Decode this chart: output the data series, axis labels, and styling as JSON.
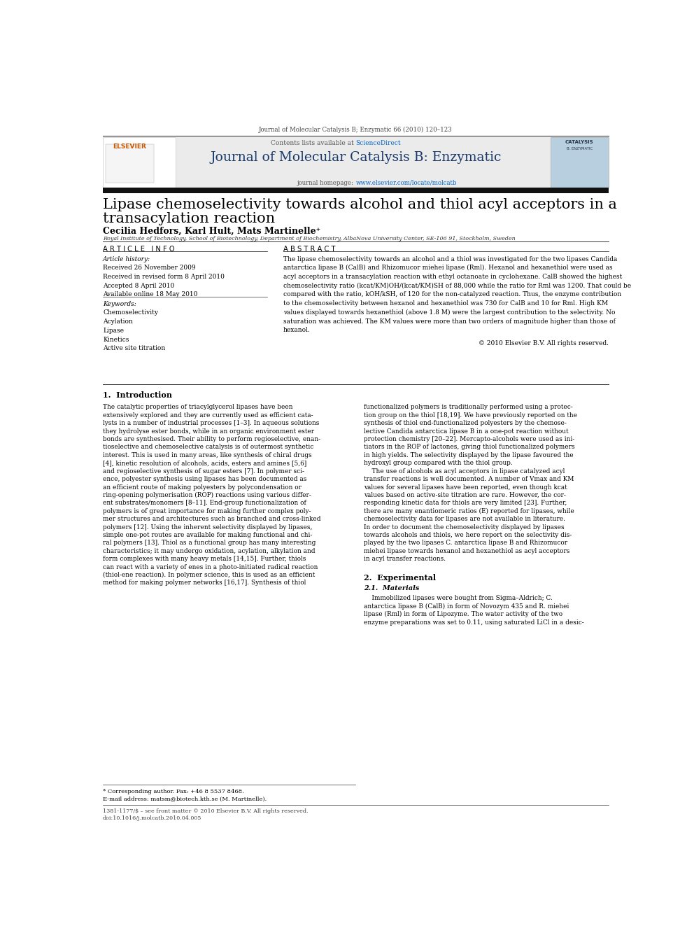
{
  "page_width": 9.92,
  "page_height": 13.23,
  "background_color": "#ffffff",
  "top_journal_line": "Journal of Molecular Catalysis B; Enzymatic 66 (2010) 120–123",
  "header_bg": "#e8e8e8",
  "header_contents": "Contents lists available at ScienceDirect",
  "sciencedirect_color": "#0066cc",
  "journal_title": "Journal of Molecular Catalysis B: Enzymatic",
  "homepage_color": "#0066cc",
  "dark_bar_color": "#1a1a1a",
  "paper_title_line1": "Lipase chemoselectivity towards alcohol and thiol acyl acceptors in a",
  "paper_title_line2": "transacylation reaction",
  "authors": "Cecilia Hedfors, Karl Hult, Mats Martinelle",
  "affiliation": "Royal Institute of Technology, School of Biotechnology, Department of Biochemistry, AlbaNova University Center, SE-106 91, Stockholm, Sweden",
  "article_info_header": "A R T I C L E   I N F O",
  "abstract_header": "A B S T R A C T",
  "article_history_label": "Article history:",
  "received1": "Received 26 November 2009",
  "received2": "Received in revised form 8 April 2010",
  "accepted": "Accepted 8 April 2010",
  "available": "Available online 18 May 2010",
  "keywords_label": "Keywords:",
  "keyword1": "Chemoselectivity",
  "keyword2": "Acylation",
  "keyword3": "Lipase",
  "keyword4": "Kinetics",
  "keyword5": "Active site titration",
  "abstract_text": [
    "The lipase chemoselectivity towards an alcohol and a thiol was investigated for the two lipases Candida",
    "antarctica lipase B (CalB) and Rhizomucor miehei lipase (Rml). Hexanol and hexanethiol were used as",
    "acyl acceptors in a transacylation reaction with ethyl octanoate in cyclohexane. CalB showed the highest",
    "chemoselectivity ratio (kcat/KM)OH/(kcat/KM)SH of 88,000 while the ratio for Rml was 1200. That could be",
    "compared with the ratio, kOH/kSH, of 120 for the non-catalyzed reaction. Thus, the enzyme contribution",
    "to the chemoselectivity between hexanol and hexanethiol was 730 for CalB and 10 for Rml. High KM",
    "values displayed towards hexanethiol (above 1.8 M) were the largest contribution to the selectivity. No",
    "saturation was achieved. The KM values were more than two orders of magnitude higher than those of",
    "hexanol."
  ],
  "copyright": "© 2010 Elsevier B.V. All rights reserved.",
  "section1_title": "1.  Introduction",
  "intro_col1": [
    "The catalytic properties of triacylglycerol lipases have been",
    "extensively explored and they are currently used as efficient cata-",
    "lysts in a number of industrial processes [1–3]. In aqueous solutions",
    "they hydrolyse ester bonds, while in an organic environment ester",
    "bonds are synthesised. Their ability to perform regioselective, enan-",
    "tioselective and chemoselective catalysis is of outermost synthetic",
    "interest. This is used in many areas, like synthesis of chiral drugs",
    "[4], kinetic resolution of alcohols, acids, esters and amines [5,6]",
    "and regioselective synthesis of sugar esters [7]. In polymer sci-",
    "ence, polyester synthesis using lipases has been documented as",
    "an efficient route of making polyesters by polycondensation or",
    "ring-opening polymerisation (ROP) reactions using various differ-",
    "ent substrates/monomers [8–11]. End-group functionalization of",
    "polymers is of great importance for making further complex poly-",
    "mer structures and architectures such as branched and cross-linked",
    "polymers [12]. Using the inherent selectivity displayed by lipases,",
    "simple one-pot routes are available for making functional and chi-",
    "ral polymers [13]. Thiol as a functional group has many interesting",
    "characteristics; it may undergo oxidation, acylation, alkylation and",
    "form complexes with many heavy metals [14,15]. Further, thiols",
    "can react with a variety of enes in a photo-initiated radical reaction",
    "(thiol-ene reaction). In polymer science, this is used as an efficient",
    "method for making polymer networks [16,17]. Synthesis of thiol"
  ],
  "intro_col2": [
    "functionalized polymers is traditionally performed using a protec-",
    "tion group on the thiol [18,19]. We have previously reported on the",
    "synthesis of thiol end-functionalized polyesters by the chemose-",
    "lective Candida antarctica lipase B in a one-pot reaction without",
    "protection chemistry [20–22]. Mercapto-alcohols were used as ini-",
    "tiators in the ROP of lactones, giving thiol functionalized polymers",
    "in high yields. The selectivity displayed by the lipase favoured the",
    "hydroxyl group compared with the thiol group.",
    "    The use of alcohols as acyl acceptors in lipase catalyzed acyl",
    "transfer reactions is well documented. A number of Vmax and KM",
    "values for several lipases have been reported, even though kcat",
    "values based on active-site titration are rare. However, the cor-",
    "responding kinetic data for thiols are very limited [23]. Further,",
    "there are many enantiomeric ratios (E) reported for lipases, while",
    "chemoselectivity data for lipases are not available in literature.",
    "In order to document the chemoselectivity displayed by lipases",
    "towards alcohols and thiols, we here report on the selectivity dis-",
    "played by the two lipases C. antarctica lipase B and Rhizomucor",
    "miehei lipase towards hexanol and hexanethiol as acyl acceptors",
    "in acyl transfer reactions."
  ],
  "section2_title": "2.  Experimental",
  "section21_title": "2.1.  Materials",
  "materials_text": [
    "    Immobilized lipases were bought from Sigma–Aldrich; C.",
    "antarctica lipase B (CalB) in form of Novozym 435 and R. miehei",
    "lipase (Rml) in form of Lipozyme. The water activity of the two",
    "enzyme preparations was set to 0.11, using saturated LiCl in a desic-"
  ],
  "footnote_star": "* Corresponding author. Fax: +46 8 5537 8468.",
  "footnote_email": "E-mail address: matsm@biotech.kth.se (M. Martinelle).",
  "bottom_line1": "1381-1177/$ – see front matter © 2010 Elsevier B.V. All rights reserved.",
  "bottom_line2": "doi:10.1016/j.molcatb.2010.04.005"
}
